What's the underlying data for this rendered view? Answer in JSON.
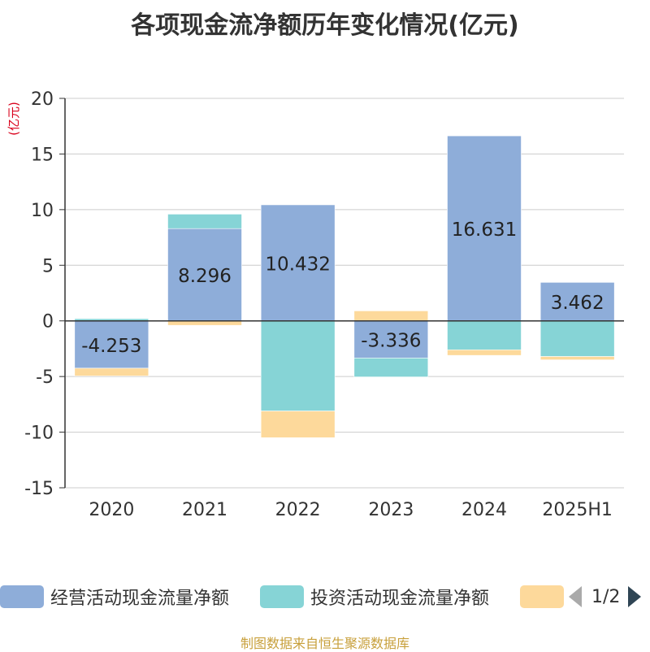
{
  "title": "各项现金流净额历年变化情况(亿元)",
  "source": "制图数据来自恒生聚源数据库",
  "pager": {
    "text": "1/2"
  },
  "chart_data": {
    "type": "bar",
    "stacked": true,
    "title": "各项现金流净额历年变化情况(亿元)",
    "ylabel": "(亿元)",
    "ylim": [
      -15,
      20
    ],
    "yticks": [
      20,
      15,
      10,
      5,
      0,
      -5,
      -10,
      -15
    ],
    "grid": true,
    "legend_position": "bottom",
    "categories": [
      "2020",
      "2021",
      "2022",
      "2023",
      "2024",
      "2025H1"
    ],
    "series": [
      {
        "name": "经营活动现金流量净额",
        "color": "#8eadd9",
        "values": [
          -4.253,
          8.296,
          10.432,
          -3.336,
          16.631,
          3.462
        ],
        "labels": [
          "-4.253",
          "8.296",
          "10.432",
          "-3.336",
          "16.631",
          "3.462"
        ]
      },
      {
        "name": "投资活动现金流量净额",
        "color": "#86d4d6",
        "values": [
          0.2,
          1.3,
          -8.1,
          -1.7,
          -2.6,
          -3.2
        ]
      },
      {
        "name": "",
        "color": "#fdd99b",
        "values": [
          -0.7,
          -0.4,
          -2.4,
          0.9,
          -0.5,
          -0.3
        ]
      }
    ]
  }
}
